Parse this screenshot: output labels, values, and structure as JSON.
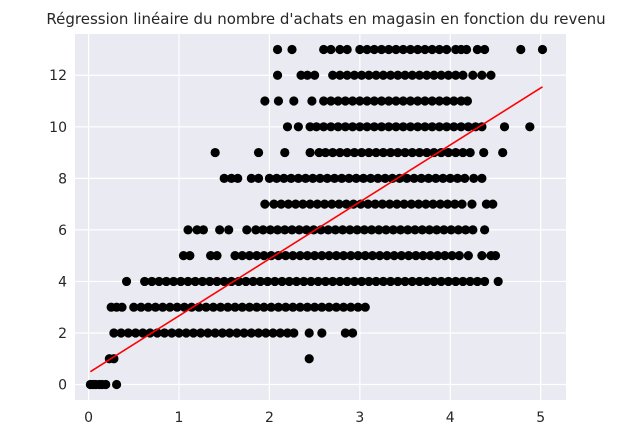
{
  "chart_data": {
    "type": "scatter",
    "title": "Régression linéaire du nombre d'achats en magasin en fonction du revenu",
    "xlabel": "",
    "ylabel": "",
    "xlim": [
      -0.15,
      5.28
    ],
    "ylim": [
      -0.6,
      13.6
    ],
    "xticks": [
      0,
      1,
      2,
      3,
      4,
      5
    ],
    "yticks": [
      0,
      2,
      4,
      6,
      8,
      10,
      12
    ],
    "grid": true,
    "legend": "none",
    "colors": {
      "background": "#eaeaf2",
      "grid": "#ffffff",
      "points": "#000000",
      "line": "#ff0000"
    },
    "points_by_level": [
      {
        "y": 0,
        "x": [
          0.02,
          0.05,
          0.08,
          0.12,
          0.15,
          0.19,
          0.31
        ]
      },
      {
        "y": 1,
        "x": [
          0.23,
          0.28,
          2.44
        ]
      },
      {
        "y": 2,
        "x": [
          0.28,
          0.36,
          0.44,
          0.52,
          0.6,
          0.68,
          0.76,
          0.84,
          0.92,
          1.0,
          1.08,
          1.16,
          1.24,
          1.32,
          1.4,
          1.48,
          1.56,
          1.64,
          1.72,
          1.8,
          1.88,
          1.96,
          2.04,
          2.12,
          2.2,
          2.27,
          2.44,
          2.58,
          2.84,
          2.92
        ]
      },
      {
        "y": 3,
        "x": [
          0.25,
          0.31,
          0.37,
          0.5,
          0.58,
          0.66,
          0.74,
          0.82,
          0.9,
          0.98,
          1.06,
          1.14,
          1.22,
          1.3,
          1.38,
          1.46,
          1.54,
          1.62,
          1.7,
          1.78,
          1.86,
          1.94,
          2.02,
          2.1,
          2.18,
          2.26,
          2.34,
          2.42,
          2.5,
          2.58,
          2.66,
          2.74,
          2.82,
          2.9,
          2.98,
          3.06
        ]
      },
      {
        "y": 4,
        "x": [
          0.42,
          0.62,
          0.7,
          0.78,
          0.86,
          0.94,
          1.02,
          1.1,
          1.18,
          1.26,
          1.34,
          1.42,
          1.5,
          1.58,
          1.66,
          1.74,
          1.82,
          1.9,
          1.98,
          2.06,
          2.14,
          2.22,
          2.3,
          2.38,
          2.46,
          2.54,
          2.62,
          2.7,
          2.78,
          2.86,
          2.94,
          3.02,
          3.1,
          3.18,
          3.26,
          3.34,
          3.42,
          3.5,
          3.58,
          3.66,
          3.74,
          3.82,
          3.9,
          3.98,
          4.06,
          4.14,
          4.22,
          4.3,
          4.38,
          4.53
        ]
      },
      {
        "y": 5,
        "x": [
          1.05,
          1.12,
          1.35,
          1.42,
          1.62,
          1.7,
          1.78,
          1.86,
          1.94,
          2.02,
          2.1,
          2.18,
          2.26,
          2.34,
          2.42,
          2.5,
          2.58,
          2.66,
          2.74,
          2.82,
          2.9,
          2.98,
          3.06,
          3.14,
          3.22,
          3.3,
          3.38,
          3.46,
          3.54,
          3.62,
          3.7,
          3.78,
          3.86,
          3.94,
          4.02,
          4.1,
          4.2,
          4.35,
          4.45,
          4.5
        ]
      },
      {
        "y": 6,
        "x": [
          1.1,
          1.2,
          1.27,
          1.45,
          1.55,
          1.75,
          1.85,
          1.93,
          2.01,
          2.09,
          2.17,
          2.25,
          2.33,
          2.41,
          2.49,
          2.57,
          2.65,
          2.73,
          2.81,
          2.89,
          2.97,
          3.05,
          3.13,
          3.21,
          3.29,
          3.37,
          3.45,
          3.53,
          3.61,
          3.69,
          3.77,
          3.85,
          3.93,
          4.01,
          4.09,
          4.17,
          4.25,
          4.38
        ]
      },
      {
        "y": 7,
        "x": [
          1.95,
          2.05,
          2.13,
          2.21,
          2.29,
          2.37,
          2.45,
          2.53,
          2.61,
          2.69,
          2.77,
          2.85,
          2.93,
          3.01,
          3.09,
          3.17,
          3.25,
          3.33,
          3.41,
          3.49,
          3.57,
          3.65,
          3.73,
          3.81,
          3.89,
          3.97,
          4.05,
          4.13,
          4.24,
          4.4,
          4.47
        ]
      },
      {
        "y": 8,
        "x": [
          1.5,
          1.58,
          1.65,
          1.8,
          1.88,
          2.0,
          2.08,
          2.16,
          2.24,
          2.32,
          2.4,
          2.48,
          2.56,
          2.64,
          2.72,
          2.8,
          2.88,
          2.96,
          3.04,
          3.12,
          3.2,
          3.28,
          3.36,
          3.44,
          3.52,
          3.6,
          3.68,
          3.76,
          3.84,
          3.92,
          4.0,
          4.08,
          4.16,
          4.26,
          4.35
        ]
      },
      {
        "y": 9,
        "x": [
          1.4,
          1.88,
          2.17,
          2.45,
          2.55,
          2.62,
          2.7,
          2.78,
          2.86,
          2.94,
          3.02,
          3.1,
          3.18,
          3.26,
          3.34,
          3.42,
          3.5,
          3.58,
          3.66,
          3.74,
          3.82,
          3.9,
          3.98,
          4.06,
          4.14,
          4.22,
          4.37,
          4.58
        ]
      },
      {
        "y": 10,
        "x": [
          2.2,
          2.32,
          2.45,
          2.52,
          2.6,
          2.68,
          2.76,
          2.84,
          2.92,
          3.0,
          3.08,
          3.16,
          3.24,
          3.32,
          3.4,
          3.48,
          3.56,
          3.64,
          3.72,
          3.8,
          3.88,
          3.96,
          4.04,
          4.12,
          4.2,
          4.28,
          4.35,
          4.6,
          4.88
        ]
      },
      {
        "y": 11,
        "x": [
          1.95,
          2.1,
          2.27,
          2.47,
          2.6,
          2.68,
          2.76,
          2.84,
          2.92,
          3.0,
          3.08,
          3.16,
          3.24,
          3.32,
          3.4,
          3.48,
          3.56,
          3.64,
          3.72,
          3.8,
          3.88,
          3.96,
          4.04,
          4.12,
          4.19
        ]
      },
      {
        "y": 12,
        "x": [
          2.09,
          2.35,
          2.42,
          2.5,
          2.7,
          2.78,
          2.86,
          2.94,
          3.02,
          3.1,
          3.18,
          3.26,
          3.34,
          3.42,
          3.5,
          3.58,
          3.66,
          3.74,
          3.82,
          3.9,
          3.98,
          4.06,
          4.14,
          4.25,
          4.35,
          4.45
        ]
      },
      {
        "y": 13,
        "x": [
          2.09,
          2.25,
          2.6,
          2.68,
          2.78,
          2.86,
          3.0,
          3.08,
          3.16,
          3.24,
          3.32,
          3.4,
          3.48,
          3.56,
          3.64,
          3.72,
          3.8,
          3.88,
          3.96,
          4.06,
          4.12,
          4.18,
          4.3,
          4.38,
          4.78,
          5.02
        ]
      }
    ],
    "regression_line": {
      "x": [
        0.02,
        5.02
      ],
      "y": [
        0.5,
        11.55
      ]
    }
  }
}
